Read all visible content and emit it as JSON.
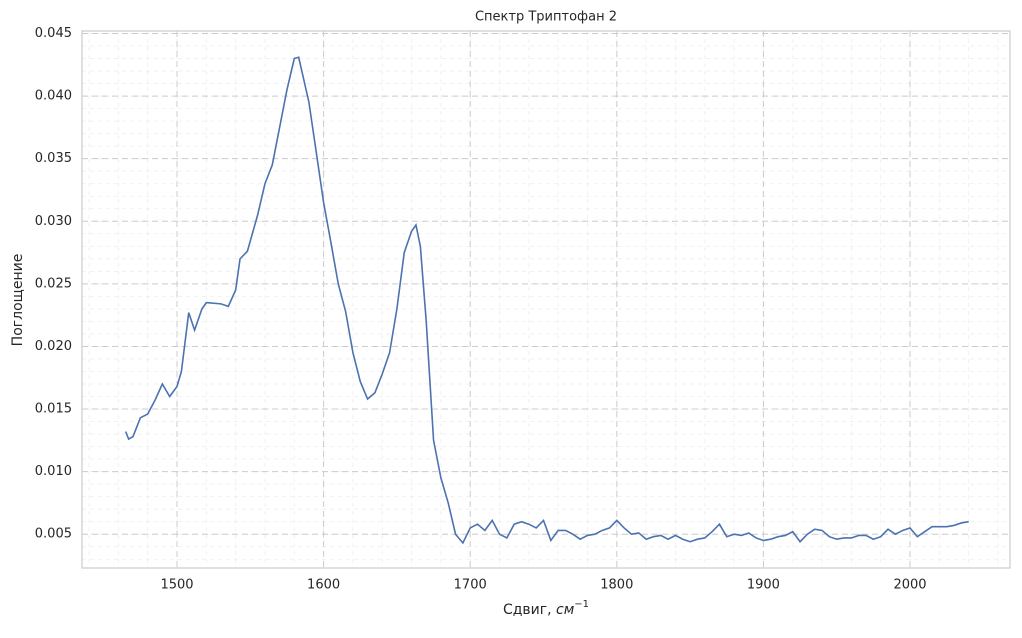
{
  "chart_data": {
    "type": "line",
    "title": "Спектр Триптофан 2",
    "xlabel": {
      "text": "Сдвиг, ",
      "unit": "см",
      "exponent": "−1"
    },
    "ylabel": "Поглощение",
    "x": [
      1465,
      1467,
      1470,
      1475,
      1480,
      1485,
      1490,
      1495,
      1500,
      1503,
      1508,
      1512,
      1517,
      1520,
      1530,
      1535,
      1540,
      1543,
      1548,
      1555,
      1560,
      1565,
      1570,
      1575,
      1580,
      1583,
      1590,
      1595,
      1600,
      1605,
      1610,
      1615,
      1620,
      1625,
      1630,
      1635,
      1640,
      1645,
      1650,
      1655,
      1660,
      1663,
      1666,
      1670,
      1675,
      1680,
      1685,
      1690,
      1695,
      1700,
      1705,
      1710,
      1715,
      1720,
      1725,
      1730,
      1735,
      1740,
      1745,
      1750,
      1755,
      1760,
      1765,
      1770,
      1775,
      1780,
      1785,
      1790,
      1795,
      1800,
      1805,
      1810,
      1815,
      1820,
      1825,
      1830,
      1835,
      1840,
      1845,
      1850,
      1855,
      1860,
      1865,
      1870,
      1875,
      1880,
      1885,
      1890,
      1895,
      1900,
      1905,
      1910,
      1915,
      1920,
      1925,
      1930,
      1935,
      1940,
      1945,
      1950,
      1955,
      1960,
      1965,
      1970,
      1975,
      1980,
      1985,
      1990,
      1995,
      2000,
      2005,
      2010,
      2015,
      2020,
      2025,
      2030,
      2035,
      2040
    ],
    "series": [
      {
        "name": "Триптофан 2",
        "color": "#4c72b0",
        "values": [
          0.0132,
          0.0126,
          0.0128,
          0.0143,
          0.0146,
          0.0157,
          0.017,
          0.016,
          0.0168,
          0.018,
          0.0227,
          0.0213,
          0.023,
          0.0235,
          0.0234,
          0.0232,
          0.0245,
          0.027,
          0.0276,
          0.0305,
          0.033,
          0.0345,
          0.0375,
          0.0405,
          0.043,
          0.0431,
          0.0395,
          0.0355,
          0.0315,
          0.0283,
          0.025,
          0.0228,
          0.0195,
          0.0172,
          0.0158,
          0.0163,
          0.0178,
          0.0195,
          0.023,
          0.0275,
          0.0292,
          0.0297,
          0.028,
          0.022,
          0.0125,
          0.0095,
          0.0075,
          0.005,
          0.0043,
          0.0055,
          0.0058,
          0.0053,
          0.0061,
          0.005,
          0.0047,
          0.0058,
          0.006,
          0.0058,
          0.0055,
          0.0061,
          0.0045,
          0.0053,
          0.0053,
          0.005,
          0.0046,
          0.0049,
          0.005,
          0.0053,
          0.0055,
          0.0061,
          0.0055,
          0.005,
          0.0051,
          0.0046,
          0.0048,
          0.0049,
          0.0046,
          0.0049,
          0.0046,
          0.0044,
          0.0046,
          0.0047,
          0.0052,
          0.0058,
          0.0048,
          0.005,
          0.0049,
          0.0051,
          0.0047,
          0.0045,
          0.0046,
          0.0048,
          0.0049,
          0.0052,
          0.0044,
          0.005,
          0.0054,
          0.0053,
          0.0048,
          0.0046,
          0.0047,
          0.0047,
          0.0049,
          0.0049,
          0.0046,
          0.0048,
          0.0054,
          0.005,
          0.0053,
          0.0055,
          0.0048,
          0.0052,
          0.0056,
          0.0056,
          0.0056,
          0.0057,
          0.0059,
          0.006
        ]
      }
    ],
    "xlim": [
      1435.2,
      2068.2
    ],
    "ylim": [
      0.0023,
      0.0452
    ],
    "xticks": [
      1500,
      1600,
      1700,
      1800,
      1900,
      2000
    ],
    "yticks": [
      {
        "value": 0.005,
        "label": "0.005"
      },
      {
        "value": 0.01,
        "label": "0.010"
      },
      {
        "value": 0.015,
        "label": "0.015"
      },
      {
        "value": 0.02,
        "label": "0.020"
      },
      {
        "value": 0.025,
        "label": "0.025"
      },
      {
        "value": 0.03,
        "label": "0.030"
      },
      {
        "value": 0.035,
        "label": "0.035"
      },
      {
        "value": 0.04,
        "label": "0.040"
      },
      {
        "value": 0.045,
        "label": "0.045"
      }
    ],
    "grid": true,
    "minor_grid": true
  }
}
